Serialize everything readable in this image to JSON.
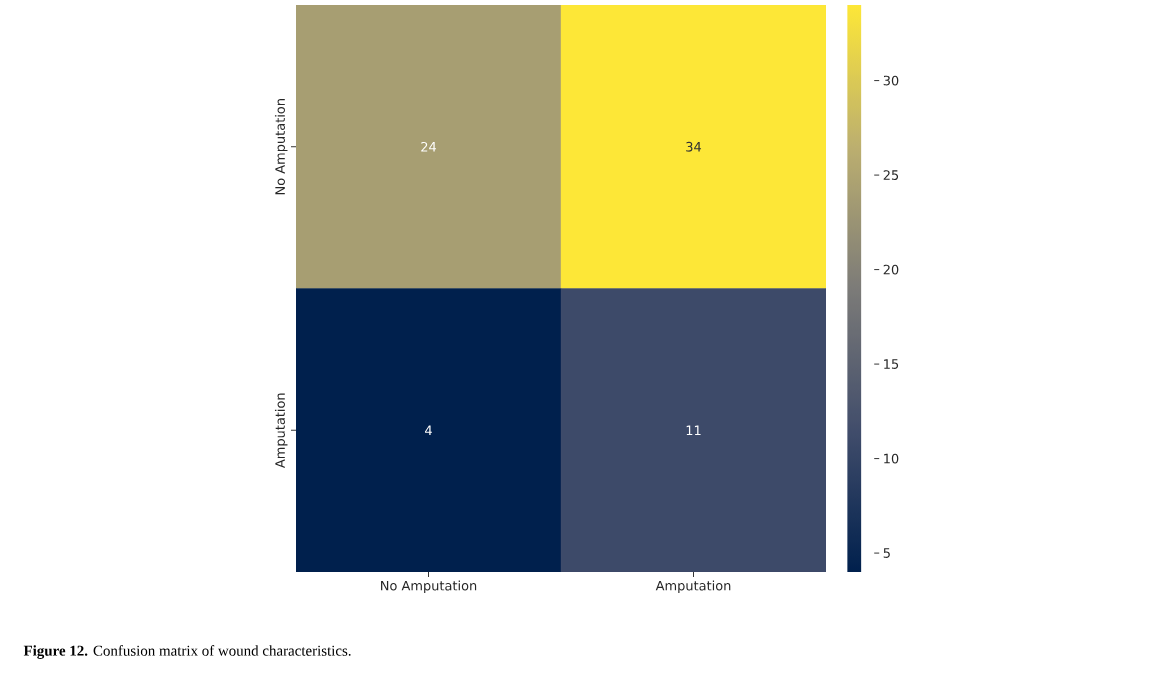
{
  "chart_data": {
    "type": "heatmap",
    "categories": [
      "No Amputation",
      "Amputation"
    ],
    "y_categories": [
      "No Amputation",
      "Amputation"
    ],
    "cells": [
      [
        24,
        34
      ],
      [
        4,
        11
      ]
    ],
    "clim": [
      4,
      34
    ],
    "cticks": [
      5,
      10,
      15,
      20,
      25,
      30
    ],
    "data_labels": true,
    "annotations": [
      "**Figure 12.** Confusion matrix of wound characteristics."
    ]
  }
}
